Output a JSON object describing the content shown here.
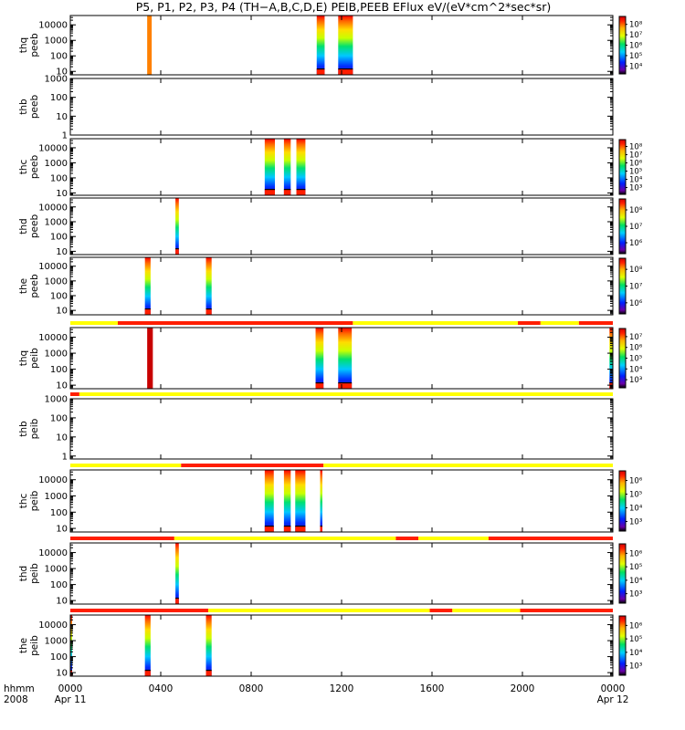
{
  "title": "P5, P1, P2, P3, P4 (TH−A,B,C,D,E) PEIB,PEEB EFlux eV/(eV*cm^2*sec*sr)",
  "x_axis": {
    "row1_label": "hhmm",
    "row2_label": "2008",
    "ticks": [
      {
        "t": 0,
        "label": "0000",
        "date": "Apr 11"
      },
      {
        "t": 4,
        "label": "0400"
      },
      {
        "t": 8,
        "label": "0800"
      },
      {
        "t": 12,
        "label": "1200"
      },
      {
        "t": 16,
        "label": "1600"
      },
      {
        "t": 20,
        "label": "2000"
      },
      {
        "t": 24,
        "label": "0000",
        "date": "Apr 12"
      }
    ],
    "range_hours": [
      0,
      24
    ]
  },
  "colors": {
    "bar_red": "#ff1e00",
    "bar_yellow": "#ffff00",
    "orange_stripe": "#ff8000",
    "dark_red": "#c80000"
  },
  "chart_data": [
    {
      "type": "heatmap",
      "ylabel": "thq peeb",
      "ylog": true,
      "ylim": [
        6,
        40000
      ],
      "yticks": [
        10,
        100,
        1000,
        10000
      ],
      "colorbar": {
        "exps": [
          4,
          5,
          6,
          7,
          8
        ]
      },
      "segments": [
        {
          "start": 3.4,
          "end": 3.6,
          "kind": "orange"
        },
        {
          "start": 10.9,
          "end": 11.25,
          "kind": "spectrum"
        },
        {
          "start": 11.85,
          "end": 12.5,
          "kind": "spectrum"
        }
      ]
    },
    {
      "type": "heatmap",
      "ylabel": "thb peeb",
      "ylog": true,
      "ylim": [
        1,
        1000
      ],
      "yticks": [
        1,
        10,
        100,
        1000
      ],
      "colorbar": null,
      "segments": []
    },
    {
      "type": "heatmap",
      "ylabel": "thc peeb",
      "ylog": true,
      "ylim": [
        7,
        40000
      ],
      "yticks": [
        10,
        100,
        1000,
        10000
      ],
      "colorbar": {
        "exps": [
          3,
          4,
          5,
          6,
          7,
          8
        ]
      },
      "segments": [
        {
          "start": 8.6,
          "end": 9.05,
          "kind": "spectrum"
        },
        {
          "start": 9.45,
          "end": 9.75,
          "kind": "spectrum"
        },
        {
          "start": 10.0,
          "end": 10.4,
          "kind": "spectrum"
        }
      ]
    },
    {
      "type": "heatmap",
      "ylabel": "thd peeb",
      "ylog": true,
      "ylim": [
        6,
        40000
      ],
      "yticks": [
        10,
        100,
        1000,
        10000
      ],
      "colorbar": {
        "exps": [
          6,
          7,
          8
        ]
      },
      "segments": [
        {
          "start": 4.65,
          "end": 4.8,
          "kind": "spectrum"
        }
      ]
    },
    {
      "type": "heatmap",
      "ylabel": "the peeb",
      "ylog": true,
      "ylim": [
        5,
        40000
      ],
      "yticks": [
        10,
        100,
        1000,
        10000
      ],
      "colorbar": {
        "exps": [
          6,
          7,
          8
        ]
      },
      "segments": [
        {
          "start": 3.3,
          "end": 3.55,
          "kind": "spectrum"
        },
        {
          "start": 6.0,
          "end": 6.25,
          "kind": "spectrum"
        }
      ]
    },
    {
      "type": "heatmap",
      "ylabel": "thq peib",
      "ylog": true,
      "ylim": [
        6,
        40000
      ],
      "yticks": [
        10,
        100,
        1000,
        10000
      ],
      "colorbar": {
        "exps": [
          3,
          4,
          5,
          6,
          7
        ]
      },
      "statusbar": [
        {
          "start": 0,
          "end": 2.1,
          "color": "yellow"
        },
        {
          "start": 2.1,
          "end": 12.5,
          "color": "red"
        },
        {
          "start": 12.5,
          "end": 19.8,
          "color": "yellow"
        },
        {
          "start": 19.8,
          "end": 20.8,
          "color": "red"
        },
        {
          "start": 20.8,
          "end": 22.5,
          "color": "yellow"
        },
        {
          "start": 22.5,
          "end": 24,
          "color": "red"
        }
      ],
      "segments": [
        {
          "start": 3.4,
          "end": 3.65,
          "kind": "darkred"
        },
        {
          "start": 10.85,
          "end": 11.2,
          "kind": "spectrum"
        },
        {
          "start": 11.85,
          "end": 12.45,
          "kind": "spectrum"
        },
        {
          "start": 23.85,
          "end": 24,
          "kind": "spectrum"
        }
      ]
    },
    {
      "type": "heatmap",
      "ylabel": "thb peib",
      "ylog": true,
      "ylim": [
        0.7,
        1000
      ],
      "yticks": [
        1,
        10,
        100,
        1000
      ],
      "colorbar": null,
      "statusbar": [
        {
          "start": 0,
          "end": 0.4,
          "color": "red"
        },
        {
          "start": 0.4,
          "end": 24,
          "color": "yellow"
        }
      ],
      "segments": []
    },
    {
      "type": "heatmap",
      "ylabel": "thc peib",
      "ylog": true,
      "ylim": [
        6,
        40000
      ],
      "yticks": [
        10,
        100,
        1000,
        10000
      ],
      "colorbar": {
        "exps": [
          3,
          4,
          5,
          6
        ]
      },
      "statusbar": [
        {
          "start": 0,
          "end": 4.9,
          "color": "yellow"
        },
        {
          "start": 4.9,
          "end": 11.2,
          "color": "red"
        },
        {
          "start": 11.2,
          "end": 24,
          "color": "yellow"
        }
      ],
      "segments": [
        {
          "start": 8.6,
          "end": 9.0,
          "kind": "spectrum"
        },
        {
          "start": 9.45,
          "end": 9.75,
          "kind": "spectrum"
        },
        {
          "start": 9.95,
          "end": 10.4,
          "kind": "spectrum"
        },
        {
          "start": 11.05,
          "end": 11.15,
          "kind": "spectrum"
        }
      ]
    },
    {
      "type": "heatmap",
      "ylabel": "thd peib",
      "ylog": true,
      "ylim": [
        6,
        40000
      ],
      "yticks": [
        10,
        100,
        1000,
        10000
      ],
      "colorbar": {
        "exps": [
          3,
          4,
          5,
          6
        ]
      },
      "statusbar": [
        {
          "start": 0,
          "end": 4.6,
          "color": "red"
        },
        {
          "start": 4.6,
          "end": 14.4,
          "color": "yellow"
        },
        {
          "start": 14.4,
          "end": 15.4,
          "color": "red"
        },
        {
          "start": 15.4,
          "end": 18.5,
          "color": "yellow"
        },
        {
          "start": 18.5,
          "end": 24,
          "color": "red"
        }
      ],
      "segments": [
        {
          "start": 4.65,
          "end": 4.8,
          "kind": "spectrum"
        }
      ]
    },
    {
      "type": "heatmap",
      "ylabel": "the peib",
      "ylog": true,
      "ylim": [
        6,
        40000
      ],
      "yticks": [
        10,
        100,
        1000,
        10000
      ],
      "colorbar": {
        "exps": [
          3,
          4,
          5,
          6
        ]
      },
      "statusbar": [
        {
          "start": 0,
          "end": 6.1,
          "color": "red"
        },
        {
          "start": 6.1,
          "end": 15.9,
          "color": "yellow"
        },
        {
          "start": 15.9,
          "end": 16.9,
          "color": "red"
        },
        {
          "start": 16.9,
          "end": 19.9,
          "color": "yellow"
        },
        {
          "start": 19.9,
          "end": 24,
          "color": "red"
        }
      ],
      "segments": [
        {
          "start": 3.3,
          "end": 3.55,
          "kind": "spectrum"
        },
        {
          "start": 6.0,
          "end": 6.25,
          "kind": "spectrum"
        },
        {
          "start": 0,
          "end": 0.08,
          "kind": "spectrum"
        }
      ]
    }
  ]
}
